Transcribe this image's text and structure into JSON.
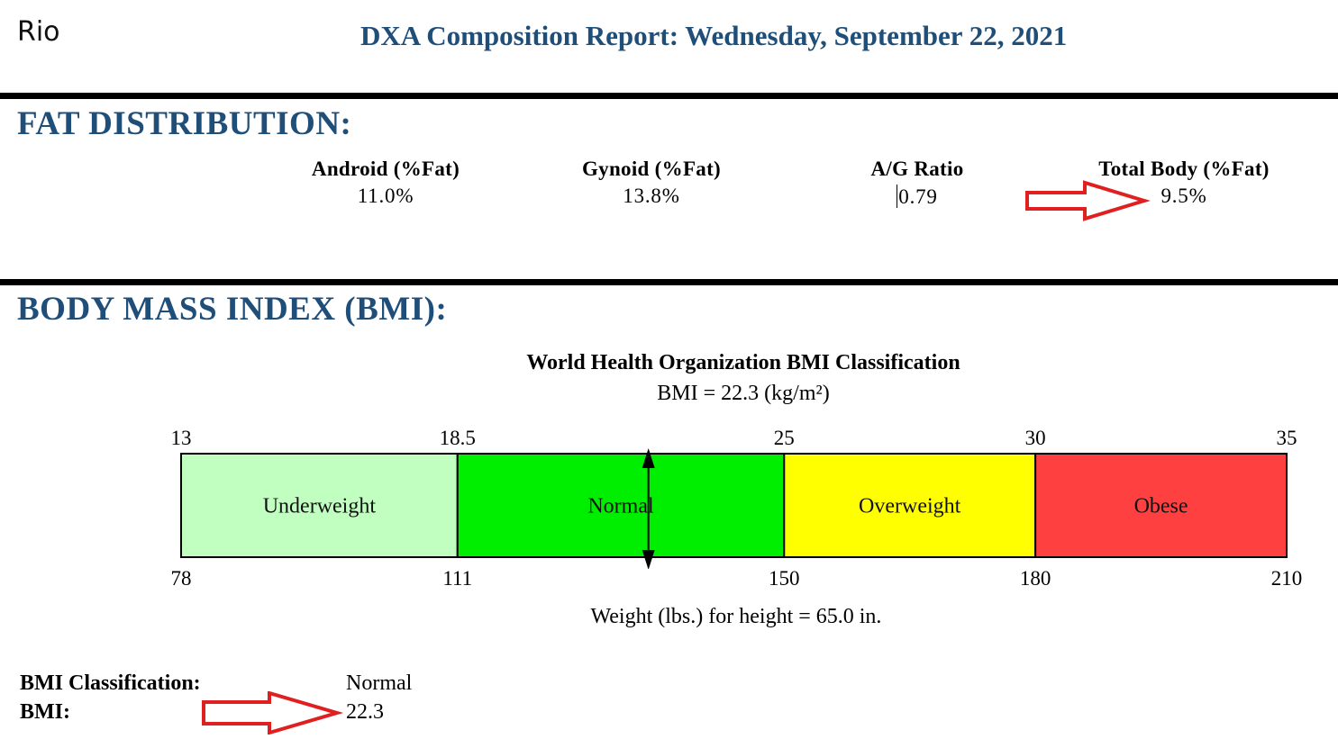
{
  "patient_name": "Rio",
  "report_title": "DXA Composition Report:  Wednesday, September 22, 2021",
  "fat_section": {
    "title": "FAT DISTRIBUTION:",
    "metrics": [
      {
        "label": "Android (%Fat)",
        "value": "11.0%"
      },
      {
        "label": "Gynoid (%Fat)",
        "value": "13.8%"
      },
      {
        "label": "A/G Ratio",
        "value": "0.79"
      },
      {
        "label": "Total Body (%Fat)",
        "value": "9.5%"
      }
    ]
  },
  "bmi_section": {
    "title": "BODY MASS INDEX (BMI):",
    "classification_label": "BMI Classification:",
    "classification_value": "Normal",
    "bmi_label": "BMI:",
    "bmi_value": "22.3"
  },
  "chart_data": {
    "type": "bar",
    "title": "World Health Organization BMI Classification",
    "subtitle": "BMI = 22.3 (kg/m²)",
    "xlabel": "Weight (lbs.) for height = 65.0 in.",
    "bmi_range": [
      13,
      35
    ],
    "marker_bmi": 22.3,
    "top_ticks": [
      "13",
      "18.5",
      "25",
      "30",
      "35"
    ],
    "top_tick_values": [
      13,
      18.5,
      25,
      30,
      35
    ],
    "bottom_ticks": [
      "78",
      "111",
      "150",
      "180",
      "210"
    ],
    "categories": [
      {
        "name": "Underweight",
        "from": 13,
        "to": 18.5,
        "color": "#c0ffc0"
      },
      {
        "name": "Normal",
        "from": 18.5,
        "to": 25,
        "color": "#00ee00"
      },
      {
        "name": "Overweight",
        "from": 25,
        "to": 30,
        "color": "#ffff00"
      },
      {
        "name": "Obese",
        "from": 30,
        "to": 35,
        "color": "#ff4040"
      }
    ]
  },
  "colors": {
    "heading": "#1f4e79",
    "arrow": "#e02020"
  }
}
